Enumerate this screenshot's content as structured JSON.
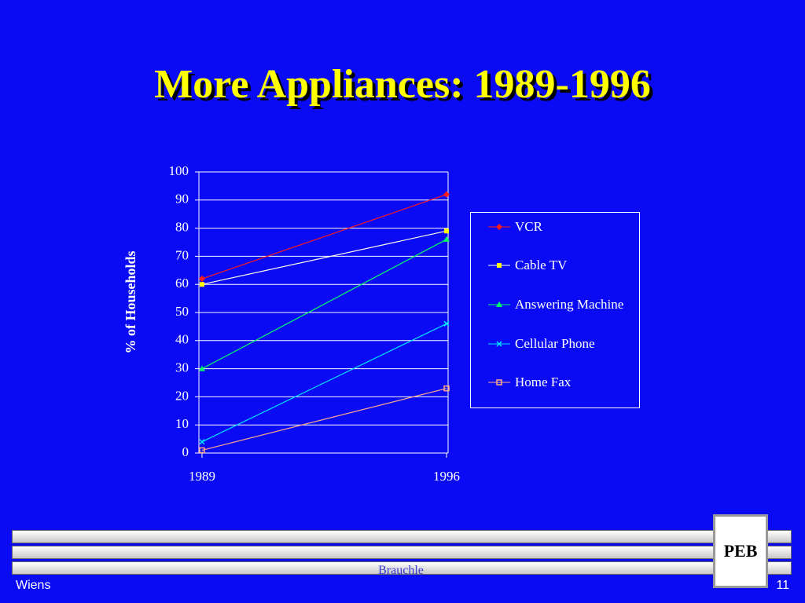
{
  "chart_data": {
    "type": "line",
    "title": "More Appliances:  1989-1996",
    "y_label": "% of Households",
    "categories": [
      "1989",
      "1996"
    ],
    "series": [
      {
        "name": "VCR",
        "color": "#ff1a1a",
        "marker": "diamond",
        "values": [
          62,
          92
        ]
      },
      {
        "name": "Cable TV",
        "color": "#ffff00",
        "line_color": "#ffffe6",
        "marker": "square",
        "values": [
          60,
          79
        ]
      },
      {
        "name": "Answering Machine",
        "color": "#00ff66",
        "marker": "triangle",
        "values": [
          30,
          76
        ]
      },
      {
        "name": "Cellular Phone",
        "color": "#00e5ff",
        "marker": "x",
        "values": [
          4,
          46
        ]
      },
      {
        "name": "Home Fax",
        "color": "#ffaa88",
        "marker": "hollow-square",
        "values": [
          1,
          23
        ]
      }
    ],
    "ylim": [
      0,
      100
    ],
    "yticks": [
      0,
      10,
      20,
      30,
      40,
      50,
      60,
      70,
      80,
      90,
      100
    ],
    "grid": true
  },
  "footer": {
    "left": "Wiens",
    "center": "Brauchle",
    "logo": "PEB",
    "page": "11"
  }
}
